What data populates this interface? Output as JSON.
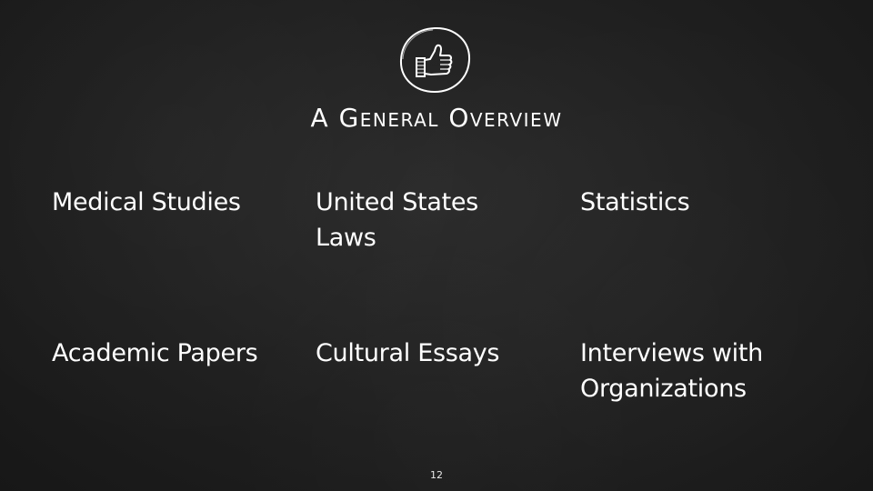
{
  "slide": {
    "title": "A General Overview",
    "icon": "thumbs-up-icon",
    "page_number": "12",
    "colors": {
      "background": "#1f1f1f",
      "text": "#ffffff"
    }
  },
  "items": [
    {
      "lines": [
        "Medical Studies"
      ]
    },
    {
      "lines": [
        "United States",
        "Laws"
      ]
    },
    {
      "lines": [
        "Statistics"
      ]
    },
    {
      "lines": [
        "Academic Papers"
      ]
    },
    {
      "lines": [
        "Cultural Essays"
      ]
    },
    {
      "lines": [
        "Interviews with",
        "Organizations"
      ]
    }
  ]
}
